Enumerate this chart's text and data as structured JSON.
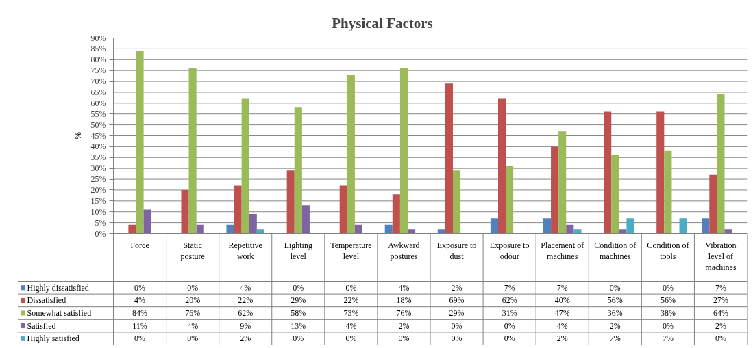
{
  "chart_data": {
    "type": "bar",
    "title": "Physical Factors",
    "ylabel": "%",
    "categories": [
      "Force",
      "Static posture",
      "Repetitive work",
      "Lighting level",
      "Temperature level",
      "Awkward postures",
      "Exposure to dust",
      "Exposure to odour",
      "Placement of machines",
      "Condition of machines",
      "Condition of tools",
      "Vibration level of machines"
    ],
    "series": [
      {
        "name": "Highly dissatisfied",
        "color": "#4f81bd",
        "values": [
          0,
          0,
          4,
          0,
          0,
          4,
          2,
          7,
          7,
          0,
          0,
          7
        ],
        "value_labels": [
          "0%",
          "0%",
          "4%",
          "0%",
          "0%",
          "4%",
          "2%",
          "7%",
          "7%",
          "0%",
          "0%",
          "7%"
        ]
      },
      {
        "name": "Dissatisfied",
        "color": "#c0504d",
        "values": [
          4,
          20,
          22,
          29,
          22,
          18,
          69,
          62,
          40,
          56,
          56,
          27
        ],
        "value_labels": [
          "4%",
          "20%",
          "22%",
          "29%",
          "22%",
          "18%",
          "69%",
          "62%",
          "40%",
          "56%",
          "56%",
          "27%"
        ]
      },
      {
        "name": "Somewhat satisfied",
        "color": "#9bbb59",
        "values": [
          84,
          76,
          62,
          58,
          73,
          76,
          29,
          31,
          47,
          36,
          38,
          64
        ],
        "value_labels": [
          "84%",
          "76%",
          "62%",
          "58%",
          "73%",
          "76%",
          "29%",
          "31%",
          "47%",
          "36%",
          "38%",
          "64%"
        ]
      },
      {
        "name": "Satisfied",
        "color": "#8064a2",
        "values": [
          11,
          4,
          9,
          13,
          4,
          2,
          0,
          0,
          4,
          2,
          0,
          2
        ],
        "value_labels": [
          "11%",
          "4%",
          "9%",
          "13%",
          "4%",
          "2%",
          "0%",
          "0%",
          "4%",
          "2%",
          "0%",
          "2%"
        ]
      },
      {
        "name": "Highly satisfied",
        "color": "#4bacc6",
        "values": [
          0,
          0,
          2,
          0,
          0,
          0,
          0,
          0,
          2,
          7,
          7,
          0
        ],
        "value_labels": [
          "0%",
          "0%",
          "2%",
          "0%",
          "0%",
          "0%",
          "0%",
          "0%",
          "2%",
          "7%",
          "7%",
          "0%"
        ]
      }
    ],
    "ylim": [
      0,
      90
    ],
    "yticks": [
      {
        "value": 0,
        "label": "0%"
      },
      {
        "value": 5,
        "label": "5%"
      },
      {
        "value": 10,
        "label": "10%"
      },
      {
        "value": 15,
        "label": "15%"
      },
      {
        "value": 20,
        "label": "20%"
      },
      {
        "value": 25,
        "label": "25%"
      },
      {
        "value": 30,
        "label": "30%"
      },
      {
        "value": 35,
        "label": "35%"
      },
      {
        "value": 40,
        "label": "40%"
      },
      {
        "value": 45,
        "label": "45%"
      },
      {
        "value": 50,
        "label": "50%"
      },
      {
        "value": 55,
        "label": "55%"
      },
      {
        "value": 60,
        "label": "60%"
      },
      {
        "value": 65,
        "label": "65%"
      },
      {
        "value": 70,
        "label": "70%"
      },
      {
        "value": 75,
        "label": "75%"
      },
      {
        "value": 80,
        "label": "80%"
      },
      {
        "value": 85,
        "label": "85%"
      },
      {
        "value": 90,
        "label": "90%"
      }
    ],
    "grid": "y",
    "legend": "bottom"
  }
}
